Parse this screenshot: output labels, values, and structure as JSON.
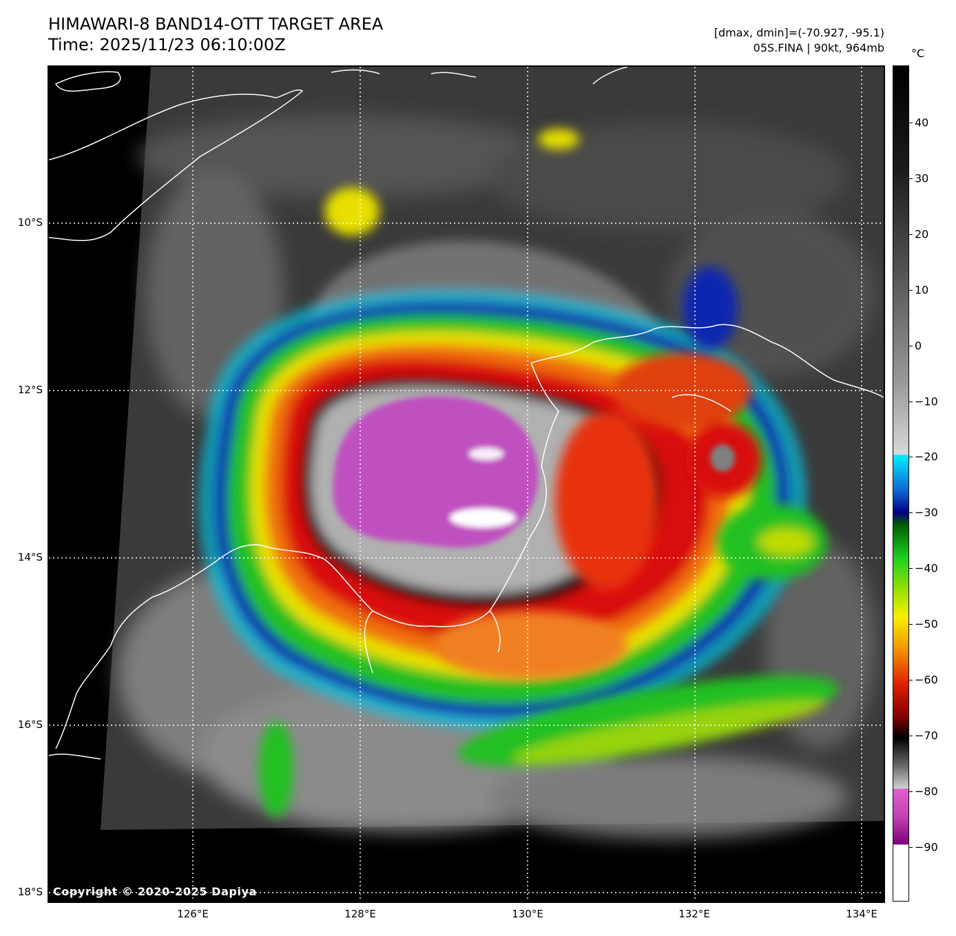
{
  "header": {
    "title_line1": "HIMAWARI-8 BAND14-OTT TARGET AREA",
    "title_line2": "Time: 2025/11/23 06:10:00Z",
    "info_line1": "[dmax, dmin]=(-70.927, -95.1)",
    "info_line2": "05S.FINA | 90kt, 964mb"
  },
  "map": {
    "copyright": "Copyright © 2020-2025 Dapiya",
    "lat_labels": [
      "10°S",
      "12°S",
      "14°S",
      "16°S",
      "18°S"
    ],
    "lon_labels": [
      "126°E",
      "128°E",
      "130°E",
      "132°E",
      "134°E"
    ],
    "storm_name": "05S.FINA",
    "colors": {
      "coastline": "#ffffff",
      "gridline": "#ffffff",
      "no_data": "#000000",
      "cold_top_magenta": "#c050c0",
      "red": "#e01010",
      "orange": "#f07010",
      "yellow": "#f0e000",
      "green": "#30d020",
      "blue": "#1030c0",
      "cyan": "#00e0f0"
    }
  },
  "colorbar": {
    "unit": "°C",
    "tick_labels": [
      "40",
      "30",
      "20",
      "10",
      "0",
      "−10",
      "−20",
      "−30",
      "−40",
      "−50",
      "−60",
      "−70",
      "−80",
      "−90"
    ],
    "range": [
      -100,
      50
    ]
  }
}
